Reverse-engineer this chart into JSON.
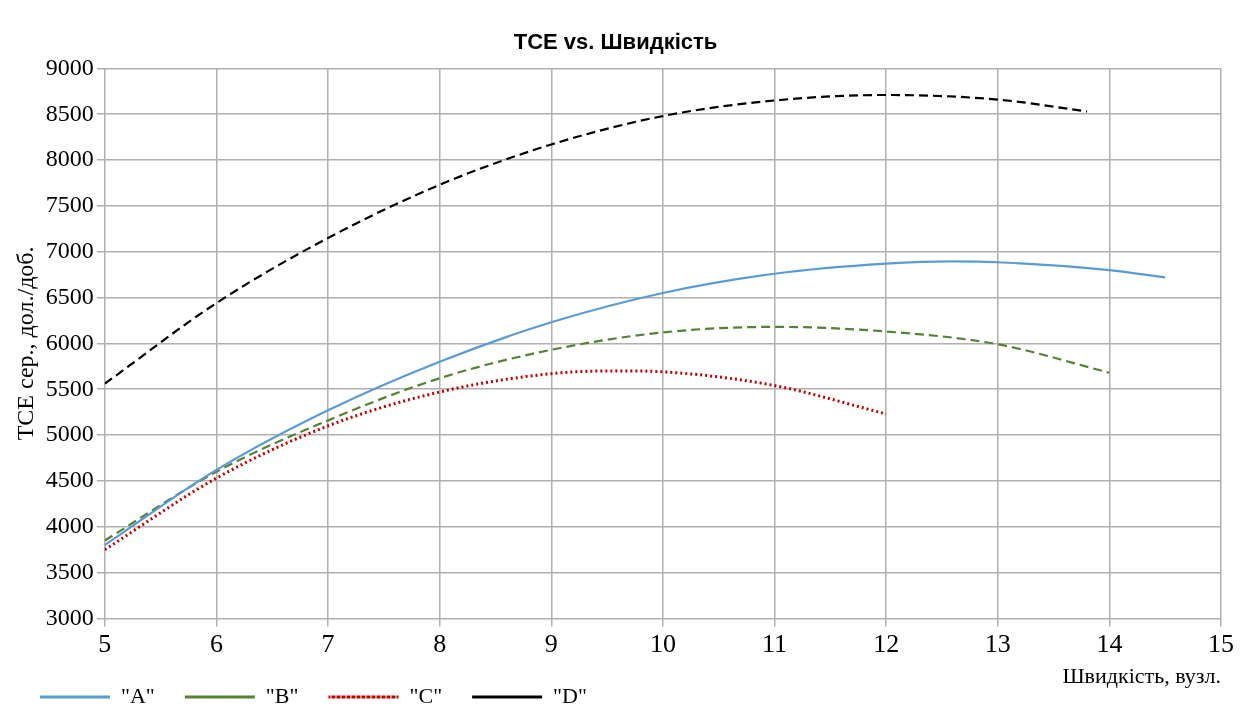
{
  "chart_data": {
    "type": "line",
    "title": "TCE vs. Швидкість",
    "xlabel": "Швидкість, вузл.",
    "ylabel": "ТСЕ сер., дол./доб.",
    "xlim": [
      5,
      15
    ],
    "xticks": [
      5,
      6,
      7,
      8,
      9,
      10,
      11,
      12,
      13,
      14,
      15
    ],
    "ylim": [
      3000,
      9000
    ],
    "yticks": [
      3000,
      3500,
      4000,
      4500,
      5000,
      5500,
      6000,
      6500,
      7000,
      7500,
      8000,
      8500,
      9000
    ],
    "grid": true,
    "legend": "bottom",
    "marker": "none",
    "series": [
      {
        "name": "\"A\"",
        "color": "#5b9bd5",
        "line_style": "solid",
        "x": [
          5,
          6,
          7,
          8,
          9,
          10,
          11,
          12,
          12.6,
          13,
          14,
          14.5
        ],
        "values": [
          3800,
          4620,
          5270,
          5800,
          6230,
          6550,
          6760,
          6870,
          6895,
          6885,
          6800,
          6720
        ]
      },
      {
        "name": "\"B\"",
        "color": "#548235",
        "line_style": "dashed",
        "x": [
          5,
          6,
          7,
          8,
          9,
          10,
          11,
          12,
          13,
          14
        ],
        "values": [
          3850,
          4600,
          5160,
          5620,
          5930,
          6120,
          6180,
          6130,
          5990,
          5680
        ]
      },
      {
        "name": "\"C\"",
        "color": "#c00000",
        "line_style": "dotted",
        "x": [
          5,
          6,
          7,
          8,
          9,
          9.6,
          10,
          11,
          12
        ],
        "values": [
          3750,
          4530,
          5100,
          5470,
          5670,
          5700,
          5690,
          5540,
          5230
        ]
      },
      {
        "name": "\"D\"",
        "color": "#000000",
        "line_style": "dashed",
        "x": [
          5,
          6,
          7,
          8,
          9,
          10,
          11,
          12,
          13,
          13.8
        ],
        "values": [
          5560,
          6440,
          7150,
          7730,
          8170,
          8480,
          8650,
          8710,
          8660,
          8530
        ]
      }
    ]
  }
}
